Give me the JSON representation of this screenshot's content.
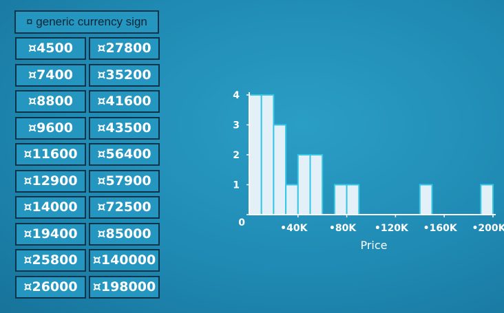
{
  "table": {
    "header": "¤ generic currency sign",
    "left": [
      "¤4500",
      "¤7400",
      "¤8800",
      "¤9600",
      "¤11600",
      "¤12900",
      "¤14000",
      "¤19400",
      "¤25800",
      "¤26000"
    ],
    "right": [
      "¤27800",
      "¤35200",
      "¤41600",
      "¤43500",
      "¤56400",
      "¤57900",
      "¤72500",
      "¤85000",
      "¤140000",
      "¤198000"
    ]
  },
  "chart_data": {
    "type": "bar",
    "xlabel": "Price",
    "ylabel": "",
    "bin_width": 10000,
    "bin_starts": [
      0,
      10000,
      20000,
      30000,
      40000,
      50000,
      60000,
      70000,
      80000,
      90000,
      100000,
      110000,
      120000,
      130000,
      140000,
      150000,
      160000,
      170000,
      180000,
      190000
    ],
    "values": [
      4,
      4,
      3,
      1,
      2,
      2,
      0,
      1,
      1,
      0,
      0,
      0,
      0,
      0,
      1,
      0,
      0,
      0,
      0,
      1
    ],
    "xlim": [
      0,
      200000
    ],
    "ylim": [
      0,
      4
    ],
    "x_ticks": [
      40000,
      80000,
      120000,
      160000,
      200000
    ],
    "x_tick_labels": [
      "•40K",
      "•80K",
      "•120K",
      "•160K",
      "•200K"
    ],
    "y_ticks": [
      0,
      1,
      2,
      3,
      4
    ],
    "y_tick_labels": [
      "0",
      "1",
      "2",
      "3",
      "4"
    ],
    "colors": {
      "bar_fill": "#e4f0f7",
      "bar_stroke": "#35c6e6",
      "axis": "#ffffff"
    }
  }
}
